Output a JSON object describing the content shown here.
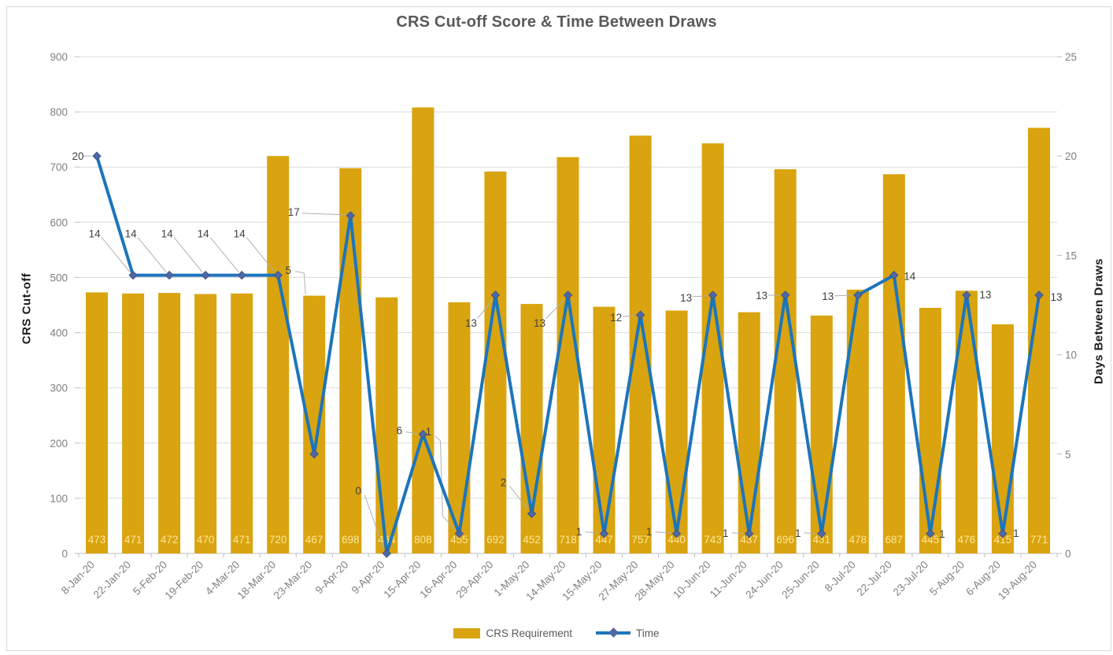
{
  "title": "CRS Cut-off Score & Time Between Draws",
  "chart_data": {
    "type": "combo-bar-line",
    "categories": [
      "8-Jan-20",
      "22-Jan-20",
      "5-Feb-20",
      "19-Feb-20",
      "4-Mar-20",
      "18-Mar-20",
      "23-Mar-20",
      "9-Apr-20",
      "9-Apr-20",
      "15-Apr-20",
      "16-Apr-20",
      "29-Apr-20",
      "1-May-20",
      "14-May-20",
      "15-May-20",
      "27-May-20",
      "28-May-20",
      "10-Jun-20",
      "11-Jun-20",
      "24-Jun-20",
      "25-Jun-20",
      "8-Jul-20",
      "22-Jul-20",
      "23-Jul-20",
      "5-Aug-20",
      "6-Aug-20",
      "19-Aug-20"
    ],
    "series": [
      {
        "name": "CRS Requirement",
        "type": "bar",
        "axis": "left",
        "color": "#D9A40F",
        "label_color": "#FFE699",
        "values": [
          473,
          471,
          472,
          470,
          471,
          720,
          467,
          698,
          464,
          808,
          455,
          692,
          452,
          718,
          447,
          757,
          440,
          743,
          437,
          696,
          431,
          478,
          687,
          445,
          476,
          415,
          771
        ]
      },
      {
        "name": "Time",
        "type": "line",
        "axis": "right",
        "color": "#1C75BC",
        "marker_color": "#4F68A5",
        "label_color": "#404040",
        "values": [
          20,
          14,
          14,
          14,
          14,
          14,
          5,
          17,
          0,
          6,
          1,
          13,
          2,
          13,
          1,
          12,
          1,
          13,
          1,
          13,
          1,
          13,
          14,
          1,
          13,
          1,
          13
        ]
      }
    ],
    "left_axis": {
      "label": "CRS Cut-off",
      "min": 0,
      "max": 900,
      "step": 100
    },
    "right_axis": {
      "label": "Days Between Draws",
      "min": 0,
      "max": 25,
      "step": 5
    },
    "legend_position": "bottom",
    "grid": true,
    "colors": {
      "gridline": "#DBDBDB",
      "axis_line": "#BFBFBF",
      "tick_label": "#808080",
      "title": "#595959",
      "axis_title": "#1A1A1A",
      "leader": "#B0B0B0",
      "legend_text": "#595959",
      "frame_border": "#D9D9D9"
    }
  }
}
